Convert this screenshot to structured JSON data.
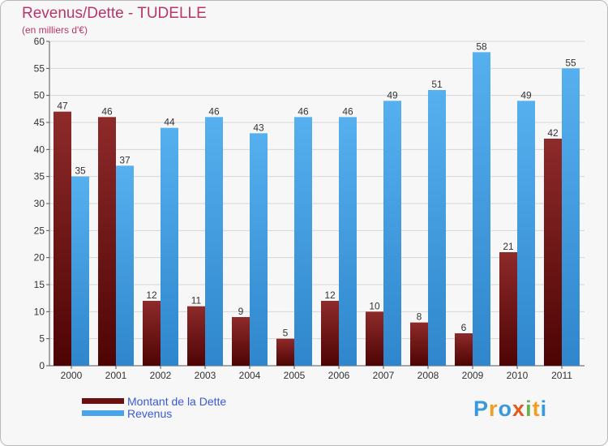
{
  "header": {
    "title": "Revenus/Dette - TUDELLE",
    "subtitle": "(en milliers d'€)"
  },
  "chart_data": {
    "type": "bar",
    "categories": [
      "2000",
      "2001",
      "2002",
      "2003",
      "2004",
      "2005",
      "2006",
      "2007",
      "2008",
      "2009",
      "2010",
      "2011"
    ],
    "series": [
      {
        "name": "Montant de la Dette",
        "color": "#7a1a1a",
        "values": [
          47,
          46,
          12,
          11,
          9,
          5,
          12,
          10,
          8,
          6,
          21,
          42
        ]
      },
      {
        "name": "Revenus",
        "color": "#4aa3e8",
        "values": [
          35,
          37,
          44,
          46,
          43,
          46,
          46,
          49,
          51,
          58,
          49,
          55
        ]
      }
    ],
    "ylim": [
      0,
      60
    ],
    "yticks": [
      0,
      5,
      10,
      15,
      20,
      25,
      30,
      35,
      40,
      45,
      50,
      55,
      60
    ],
    "grid": true,
    "legend_position": "bottom-left"
  },
  "legend": {
    "items": [
      {
        "label": "Montant de la Dette",
        "color": "#6a0f0f"
      },
      {
        "label": "Revenus",
        "color": "#4aa3e8"
      }
    ]
  },
  "logo": {
    "parts": [
      "P",
      "r",
      "o",
      "x",
      "i",
      "t",
      "i"
    ]
  }
}
